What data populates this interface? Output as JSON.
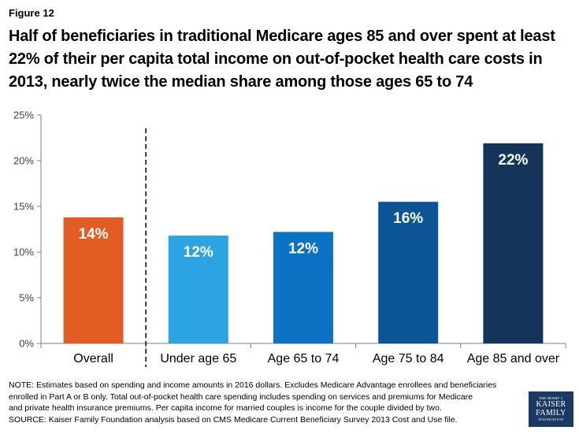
{
  "figure_label": "Figure 12",
  "title": "Half of beneficiaries in traditional Medicare ages 85 and over spent at least 22% of their per capita total income on out-of-pocket health care costs in 2013, nearly twice the median share among those ages 65 to 74",
  "chart_data": {
    "type": "bar",
    "title": "Half of beneficiaries in traditional Medicare ages 85 and over spent at least 22% of their per capita total income on out-of-pocket health care costs in 2013, nearly twice the median share among those ages 65 to 74",
    "categories": [
      "Overall",
      "Under age 65",
      "Age 65 to 74",
      "Age 75 to 84",
      "Age 85 and over"
    ],
    "values": [
      13.8,
      11.8,
      12.2,
      15.5,
      21.9
    ],
    "data_labels": [
      "14%",
      "12%",
      "12%",
      "16%",
      "22%"
    ],
    "colors": [
      "#e15d24",
      "#2ca4e4",
      "#0c72c4",
      "#0b5596",
      "#143459"
    ],
    "ylim": [
      0,
      25
    ],
    "yticks": [
      0,
      5,
      10,
      15,
      20,
      25
    ],
    "ytick_labels": [
      "0%",
      "5%",
      "10%",
      "15%",
      "20%",
      "25%"
    ],
    "xlabel": "",
    "ylabel": "",
    "grid": false,
    "legend": "none",
    "separator_after_category": 0
  },
  "note_lines": [
    "NOTE: Estimates based on spending and income amounts in 2016 dollars. Excludes Medicare Advantage enrollees and beneficiaries",
    "enrolled in Part A or B only. Total out-of-pocket health care spending includes spending on services and premiums for Medicare",
    "and private health insurance premiums. Per capita income for married couples is income for the couple divided by two.",
    "SOURCE: Kaiser Family Foundation analysis based on CMS Medicare Current Beneficiary Survey 2013 Cost and Use file."
  ],
  "logo": {
    "line1": "THE HENRY J.",
    "line2": "KAISER",
    "line3": "FAMILY",
    "line4": "FOUNDATION"
  }
}
